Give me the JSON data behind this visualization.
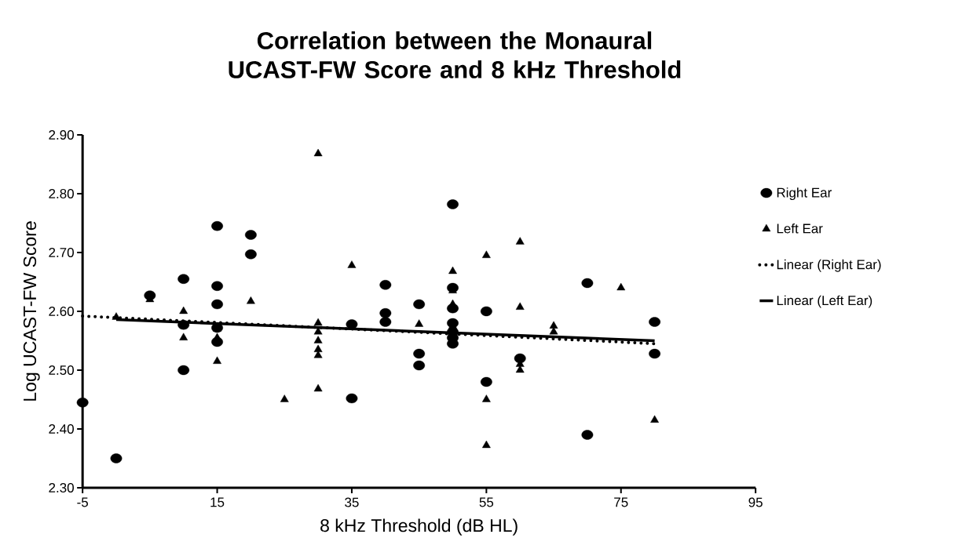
{
  "chart_data": {
    "type": "scatter",
    "title": "Correlation between the Monaural UCAST-FW Score and 8 kHz Threshold",
    "xlabel": "8 kHz Threshold (dB HL)",
    "ylabel": "Log UCAST-FW Score",
    "xlim": [
      -5,
      95
    ],
    "xticks": [
      -5,
      15,
      35,
      55,
      75,
      95
    ],
    "ylim": [
      2.3,
      2.9
    ],
    "yticks": [
      {
        "value": 2.3,
        "label": "2.30"
      },
      {
        "value": 2.4,
        "label": "2.40"
      },
      {
        "value": 2.5,
        "label": "2.50"
      },
      {
        "value": 2.6,
        "label": "2.60"
      },
      {
        "value": 2.7,
        "label": "2.70"
      },
      {
        "value": 2.8,
        "label": "2.80"
      },
      {
        "value": 2.9,
        "label": "2.90"
      }
    ],
    "grid": false,
    "legend": "right",
    "series": [
      {
        "name": "Right Ear",
        "color": "#000000",
        "marker": "circle",
        "x": [
          -5,
          0,
          5,
          10,
          10,
          10,
          15,
          15,
          15,
          15,
          15,
          20,
          20,
          35,
          35,
          40,
          40,
          40,
          45,
          45,
          45,
          50,
          50,
          50,
          50,
          50,
          50,
          50,
          55,
          55,
          60,
          70,
          70,
          80,
          80
        ],
        "values": [
          2.445,
          2.35,
          2.627,
          2.655,
          2.577,
          2.5,
          2.745,
          2.643,
          2.612,
          2.572,
          2.548,
          2.73,
          2.697,
          2.578,
          2.452,
          2.645,
          2.597,
          2.582,
          2.612,
          2.528,
          2.508,
          2.782,
          2.64,
          2.605,
          2.58,
          2.565,
          2.555,
          2.545,
          2.6,
          2.48,
          2.52,
          2.648,
          2.39,
          2.582,
          2.528
        ]
      },
      {
        "name": "Left Ear",
        "color": "#000000",
        "marker": "triangle",
        "x": [
          0,
          5,
          10,
          10,
          15,
          15,
          15,
          20,
          25,
          30,
          30,
          30,
          30,
          30,
          30,
          30,
          35,
          40,
          45,
          50,
          50,
          50,
          50,
          55,
          55,
          55,
          60,
          60,
          60,
          60,
          65,
          65,
          75,
          80
        ],
        "values": [
          2.59,
          2.62,
          2.6,
          2.555,
          2.57,
          2.555,
          2.515,
          2.617,
          2.45,
          2.868,
          2.58,
          2.565,
          2.55,
          2.535,
          2.525,
          2.468,
          2.678,
          2.595,
          2.578,
          2.668,
          2.635,
          2.612,
          2.575,
          2.695,
          2.45,
          2.372,
          2.718,
          2.607,
          2.51,
          2.5,
          2.575,
          2.565,
          2.64,
          2.415
        ]
      },
      {
        "name": "Linear (Right Ear)",
        "type": "line",
        "color": "#000000",
        "marker": "none",
        "line_style": "dotted",
        "x": [
          -5,
          80
        ],
        "values": [
          2.592,
          2.545
        ]
      },
      {
        "name": "Linear (Left Ear)",
        "type": "line",
        "color": "#000000",
        "marker": "none",
        "line_style": "solid",
        "x": [
          0,
          80
        ],
        "values": [
          2.586,
          2.55
        ]
      }
    ]
  }
}
